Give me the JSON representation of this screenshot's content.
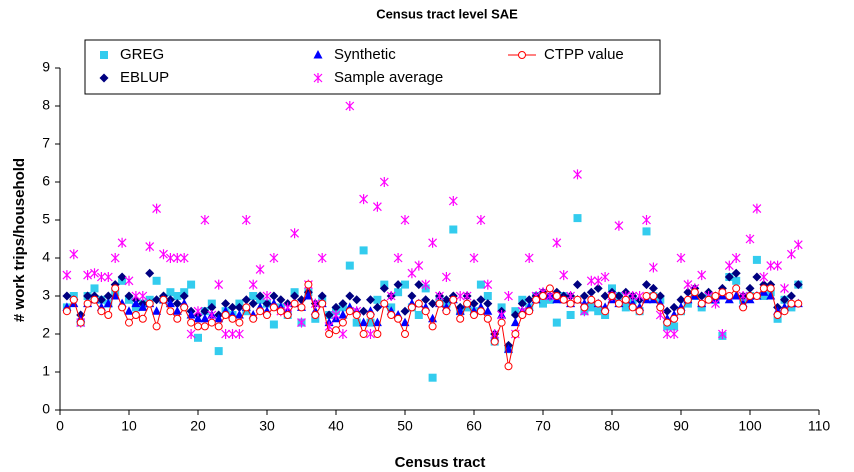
{
  "chart_data": {
    "type": "scatter",
    "title": "Census tract level SAE",
    "x_label": "Census tract",
    "y_label": "# work trips/household",
    "xlim": [
      0,
      110
    ],
    "xticks": [
      0,
      10,
      20,
      30,
      40,
      50,
      60,
      70,
      80,
      90,
      100,
      110
    ],
    "ylim": [
      0,
      9
    ],
    "yticks": [
      0,
      1,
      2,
      3,
      4,
      5,
      6,
      7,
      8,
      9
    ],
    "x": [
      1,
      2,
      3,
      4,
      5,
      6,
      7,
      8,
      9,
      10,
      11,
      12,
      13,
      14,
      15,
      16,
      17,
      18,
      19,
      20,
      21,
      22,
      23,
      24,
      25,
      26,
      27,
      28,
      29,
      30,
      31,
      32,
      33,
      34,
      35,
      36,
      37,
      38,
      39,
      40,
      41,
      42,
      43,
      44,
      45,
      46,
      47,
      48,
      49,
      50,
      51,
      52,
      53,
      54,
      55,
      56,
      57,
      58,
      59,
      60,
      61,
      62,
      63,
      64,
      65,
      66,
      67,
      68,
      69,
      70,
      71,
      72,
      73,
      74,
      75,
      76,
      77,
      78,
      79,
      80,
      81,
      82,
      83,
      84,
      85,
      86,
      87,
      88,
      89,
      90,
      91,
      92,
      93,
      94,
      95,
      96,
      97,
      98,
      99,
      100,
      101,
      102,
      103,
      104,
      105,
      106,
      107
    ],
    "series": [
      {
        "name": "GREG",
        "color": "#33CCEE",
        "marker": "square",
        "values": [
          2.7,
          3.0,
          2.3,
          3.0,
          3.2,
          2.9,
          2.8,
          3.1,
          3.4,
          2.9,
          2.7,
          2.8,
          2.9,
          3.4,
          2.9,
          3.1,
          3.0,
          3.1,
          3.3,
          1.9,
          2.6,
          2.8,
          1.55,
          2.6,
          2.5,
          2.8,
          2.6,
          3.0,
          2.9,
          2.8,
          2.25,
          2.7,
          2.5,
          3.1,
          2.3,
          3.1,
          2.4,
          2.9,
          2.5,
          2.6,
          2.7,
          3.8,
          2.3,
          4.2,
          2.3,
          2.9,
          3.3,
          2.7,
          3.1,
          3.3,
          2.7,
          2.5,
          3.2,
          0.85,
          2.9,
          2.8,
          4.75,
          2.6,
          2.7,
          2.6,
          3.3,
          3.0,
          1.8,
          2.7,
          1.6,
          2.6,
          2.9,
          2.7,
          3.0,
          2.8,
          2.9,
          2.3,
          3.0,
          2.5,
          5.05,
          2.6,
          2.7,
          2.6,
          2.5,
          3.2,
          3.0,
          2.7,
          2.9,
          2.6,
          4.7,
          3.0,
          2.9,
          2.2,
          2.2,
          2.6,
          2.8,
          3.0,
          2.7,
          3.0,
          2.9,
          1.95,
          3.5,
          3.4,
          2.9,
          3.0,
          3.95,
          3.0,
          3.1,
          2.4,
          2.9,
          2.7,
          3.3
        ]
      },
      {
        "name": "EBLUP",
        "color": "#000080",
        "marker": "diamond",
        "values": [
          3.0,
          2.9,
          2.5,
          3.0,
          3.0,
          2.9,
          3.0,
          3.3,
          3.5,
          3.0,
          2.9,
          2.8,
          3.6,
          2.9,
          3.0,
          2.9,
          2.8,
          3.0,
          2.6,
          2.5,
          2.6,
          2.7,
          2.5,
          2.8,
          2.7,
          2.7,
          2.9,
          2.8,
          3.0,
          2.8,
          3.0,
          2.9,
          2.8,
          3.0,
          2.9,
          3.1,
          2.8,
          3.0,
          2.5,
          2.7,
          2.8,
          3.0,
          2.9,
          2.6,
          2.9,
          2.7,
          3.2,
          3.0,
          3.3,
          2.6,
          3.0,
          3.3,
          2.9,
          2.8,
          3.0,
          2.9,
          3.0,
          2.7,
          3.0,
          2.8,
          2.9,
          2.8,
          2.0,
          2.6,
          1.7,
          2.5,
          2.8,
          2.9,
          3.0,
          3.1,
          3.0,
          3.1,
          3.0,
          3.0,
          3.3,
          3.0,
          3.1,
          3.2,
          3.0,
          3.1,
          3.0,
          3.1,
          3.0,
          2.9,
          3.3,
          3.2,
          3.0,
          2.6,
          2.7,
          2.9,
          3.1,
          3.2,
          3.0,
          3.1,
          3.0,
          3.2,
          3.5,
          3.6,
          3.0,
          3.2,
          3.5,
          3.3,
          3.3,
          2.7,
          2.9,
          3.0,
          3.3
        ]
      },
      {
        "name": "Synthetic",
        "color": "#0000FF",
        "marker": "triangle",
        "values": [
          2.7,
          2.8,
          2.4,
          2.8,
          2.9,
          2.7,
          2.8,
          3.0,
          2.8,
          2.6,
          2.8,
          2.7,
          2.8,
          2.6,
          2.9,
          2.8,
          2.6,
          2.8,
          2.5,
          2.4,
          2.4,
          2.5,
          2.4,
          2.6,
          2.5,
          2.5,
          2.7,
          2.5,
          2.7,
          2.6,
          2.8,
          2.7,
          2.6,
          2.8,
          2.7,
          3.0,
          2.6,
          2.8,
          2.3,
          2.4,
          2.5,
          2.7,
          2.6,
          2.3,
          2.6,
          2.3,
          2.8,
          2.6,
          2.5,
          2.3,
          2.8,
          2.8,
          2.7,
          2.4,
          2.8,
          2.7,
          2.9,
          2.6,
          2.8,
          2.6,
          2.7,
          2.6,
          1.9,
          2.5,
          1.6,
          2.3,
          2.6,
          2.7,
          2.9,
          3.0,
          3.0,
          2.9,
          2.9,
          2.8,
          2.9,
          2.8,
          2.9,
          2.8,
          2.7,
          2.9,
          2.8,
          2.9,
          2.8,
          2.7,
          2.9,
          2.9,
          2.8,
          2.4,
          2.5,
          2.7,
          2.9,
          3.0,
          2.8,
          2.9,
          2.9,
          3.0,
          2.9,
          3.0,
          2.8,
          2.9,
          3.0,
          3.1,
          3.0,
          2.6,
          2.7,
          2.8,
          2.8
        ]
      },
      {
        "name": "Sample average",
        "color": "#FF00FF",
        "marker": "asterisk",
        "values": [
          3.55,
          4.1,
          2.3,
          3.55,
          3.6,
          3.5,
          3.5,
          4.0,
          4.4,
          3.4,
          3.0,
          3.0,
          4.3,
          5.3,
          4.1,
          4.0,
          4.0,
          4.0,
          2.0,
          2.6,
          5.0,
          2.5,
          3.3,
          2.0,
          2.0,
          2.0,
          5.0,
          3.3,
          3.7,
          3.0,
          4.0,
          2.6,
          2.7,
          4.65,
          2.3,
          3.3,
          2.8,
          4.0,
          2.2,
          2.5,
          2.0,
          8.0,
          2.6,
          5.55,
          2.0,
          5.35,
          6.0,
          3.0,
          4.0,
          5.0,
          3.6,
          3.8,
          3.3,
          4.4,
          3.0,
          3.5,
          5.5,
          3.0,
          3.0,
          4.0,
          5.0,
          3.3,
          2.0,
          2.5,
          3.0,
          2.0,
          2.6,
          4.0,
          3.0,
          3.1,
          3.0,
          4.4,
          3.55,
          3.0,
          6.2,
          2.6,
          3.4,
          3.4,
          3.5,
          3.0,
          4.85,
          3.0,
          3.0,
          3.0,
          5.0,
          3.75,
          2.5,
          2.0,
          2.0,
          4.0,
          3.3,
          3.2,
          3.55,
          3.0,
          2.8,
          2.0,
          3.8,
          4.0,
          3.0,
          4.5,
          5.3,
          3.5,
          3.8,
          3.8,
          3.2,
          4.1,
          4.35
        ]
      },
      {
        "name": "CTPP value",
        "color": "#FF0000",
        "marker": "circle-line",
        "values": [
          2.6,
          2.9,
          2.3,
          2.8,
          2.9,
          2.6,
          2.5,
          3.2,
          2.7,
          2.3,
          2.5,
          2.4,
          2.8,
          2.2,
          2.9,
          2.6,
          2.4,
          2.7,
          2.3,
          2.2,
          2.2,
          2.3,
          2.2,
          2.5,
          2.4,
          2.3,
          2.7,
          2.4,
          2.6,
          2.5,
          2.7,
          2.6,
          2.5,
          2.8,
          2.7,
          3.3,
          2.5,
          2.8,
          2.0,
          2.1,
          2.3,
          2.6,
          2.5,
          2.0,
          2.5,
          2.0,
          2.8,
          2.5,
          2.4,
          2.0,
          2.7,
          2.8,
          2.6,
          2.2,
          2.8,
          2.6,
          2.9,
          2.4,
          2.8,
          2.5,
          2.6,
          2.4,
          1.8,
          2.3,
          1.15,
          2.0,
          2.5,
          2.6,
          2.9,
          3.0,
          3.2,
          3.0,
          2.9,
          2.8,
          2.9,
          2.7,
          2.9,
          2.8,
          2.6,
          3.0,
          2.8,
          2.9,
          2.7,
          2.6,
          3.0,
          3.0,
          2.7,
          2.3,
          2.4,
          2.6,
          2.9,
          3.1,
          2.8,
          2.9,
          3.0,
          3.1,
          3.0,
          3.2,
          2.7,
          3.0,
          3.0,
          3.2,
          3.2,
          2.5,
          2.6,
          2.8,
          2.8
        ]
      }
    ]
  }
}
